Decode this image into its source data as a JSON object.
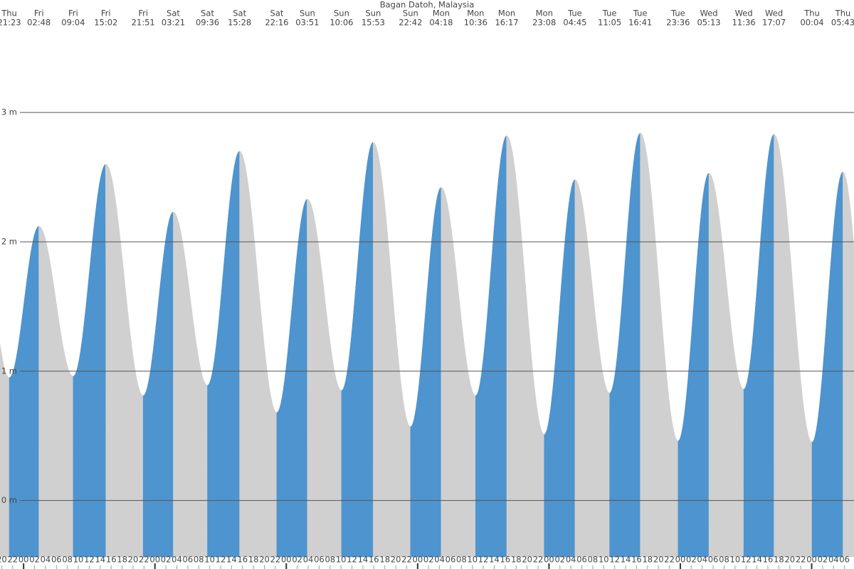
{
  "chart_data": {
    "type": "tide",
    "title": "Bagan Datoh, Malaysia",
    "extremes": [
      {
        "day": "Thu",
        "time": "21:23",
        "height": 0.95
      },
      {
        "day": "Fri",
        "time": "02:48",
        "height": 2.12
      },
      {
        "day": "Fri",
        "time": "09:04",
        "height": 0.96
      },
      {
        "day": "Fri",
        "time": "15:02",
        "height": 2.6
      },
      {
        "day": "Fri",
        "time": "21:51",
        "height": 0.81
      },
      {
        "day": "Sat",
        "time": "03:21",
        "height": 2.23
      },
      {
        "day": "Sat",
        "time": "09:36",
        "height": 0.89
      },
      {
        "day": "Sat",
        "time": "15:28",
        "height": 2.7
      },
      {
        "day": "Sat",
        "time": "22:16",
        "height": 0.68
      },
      {
        "day": "Sun",
        "time": "03:51",
        "height": 2.33
      },
      {
        "day": "Sun",
        "time": "10:06",
        "height": 0.85
      },
      {
        "day": "Sun",
        "time": "15:53",
        "height": 2.77
      },
      {
        "day": "Sun",
        "time": "22:42",
        "height": 0.57
      },
      {
        "day": "Mon",
        "time": "04:18",
        "height": 2.42
      },
      {
        "day": "Mon",
        "time": "10:36",
        "height": 0.81
      },
      {
        "day": "Mon",
        "time": "16:17",
        "height": 2.82
      },
      {
        "day": "Mon",
        "time": "23:08",
        "height": 0.51
      },
      {
        "day": "Tue",
        "time": "04:45",
        "height": 2.48
      },
      {
        "day": "Tue",
        "time": "11:05",
        "height": 0.83
      },
      {
        "day": "Tue",
        "time": "16:41",
        "height": 2.84
      },
      {
        "day": "Tue",
        "time": "23:36",
        "height": 0.46
      },
      {
        "day": "Wed",
        "time": "05:13",
        "height": 2.53
      },
      {
        "day": "Wed",
        "time": "11:36",
        "height": 0.86
      },
      {
        "day": "Wed",
        "time": "17:07",
        "height": 2.83
      },
      {
        "day": "Thu",
        "time": "00:04",
        "height": 0.45
      },
      {
        "day": "Thu",
        "time": "05:43",
        "height": 2.54
      }
    ],
    "hour_labels": [
      "20",
      "22",
      "00",
      "02",
      "04",
      "06",
      "08",
      "10",
      "12",
      "14",
      "16",
      "18",
      "20",
      "22",
      "00",
      "02",
      "04",
      "06",
      "08",
      "10",
      "12",
      "14",
      "16",
      "18",
      "20",
      "22",
      "00",
      "02",
      "04",
      "06",
      "08",
      "10",
      "12",
      "14",
      "16",
      "18",
      "20",
      "22",
      "00",
      "02",
      "04",
      "06",
      "08",
      "10",
      "12",
      "14",
      "16",
      "18",
      "20",
      "22",
      "00",
      "02",
      "04",
      "06",
      "08",
      "10",
      "12",
      "14",
      "16",
      "18",
      "20",
      "22",
      "00",
      "02",
      "04",
      "06",
      "08",
      "10",
      "12",
      "14",
      "16",
      "18",
      "20",
      "22",
      "00",
      "02",
      "04",
      "06"
    ],
    "ylim": [
      -0.53,
      3.87
    ],
    "yticks": [
      {
        "value": 0,
        "label": "0 m"
      },
      {
        "value": 1,
        "label": "1 m"
      },
      {
        "value": 2,
        "label": "2 m"
      },
      {
        "value": 3,
        "label": "3 m"
      }
    ],
    "rising_color": "#4e94ce",
    "falling_color": "#d0d0d0",
    "grid": true
  }
}
